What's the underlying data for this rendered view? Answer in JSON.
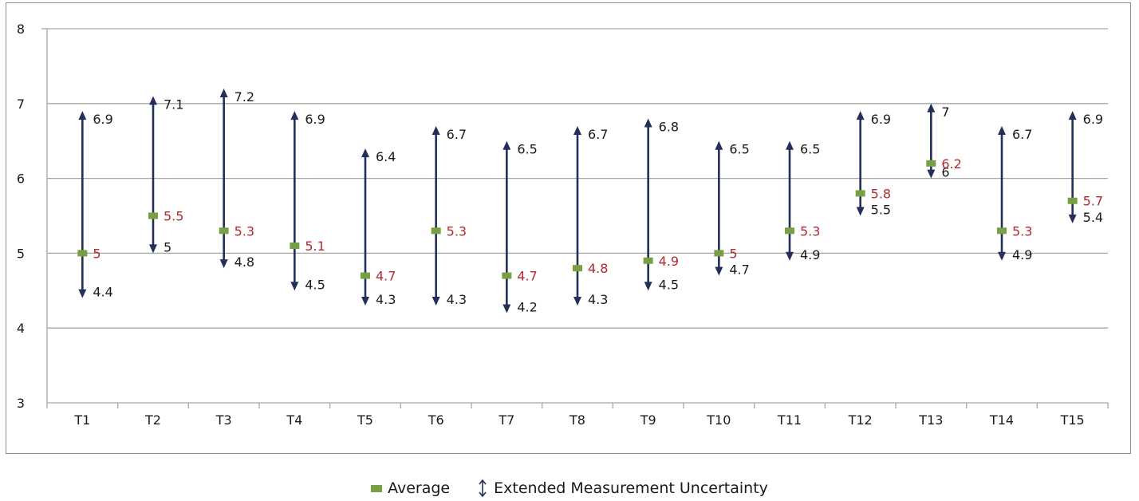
{
  "chart_data": {
    "type": "scatter",
    "title": "",
    "xlabel": "",
    "ylabel": "",
    "ylim": [
      3,
      8
    ],
    "yticks": [
      3,
      4,
      5,
      6,
      7,
      8
    ],
    "grid": true,
    "legend_position": "bottom-center",
    "categories": [
      "T1",
      "T2",
      "T3",
      "T4",
      "T5",
      "T6",
      "T7",
      "T8",
      "T9",
      "T10",
      "T11",
      "T12",
      "T13",
      "T14",
      "T15"
    ],
    "series": [
      {
        "name": "Average",
        "values": [
          5,
          5.5,
          5.3,
          5.1,
          4.7,
          5.3,
          4.7,
          4.8,
          4.9,
          5,
          5.3,
          5.8,
          6.2,
          5.3,
          5.7
        ]
      },
      {
        "name": "Extended Measurement Uncertainty",
        "upper": [
          6.9,
          7.1,
          7.2,
          6.9,
          6.4,
          6.7,
          6.5,
          6.7,
          6.8,
          6.5,
          6.5,
          6.9,
          7,
          6.7,
          6.9
        ],
        "lower": [
          4.4,
          5,
          4.8,
          4.5,
          4.3,
          4.3,
          4.2,
          4.3,
          4.5,
          4.7,
          4.9,
          5.5,
          6,
          4.9,
          5.4
        ]
      }
    ],
    "colors": {
      "average": "#77a043",
      "average_label": "#b02a30",
      "arrow": "#23305a",
      "grid": "#a6a6a6",
      "text": "#1a1a1a"
    }
  },
  "legend": {
    "average_label": "Average",
    "uncertainty_label": "Extended Measurement Uncertainty"
  }
}
